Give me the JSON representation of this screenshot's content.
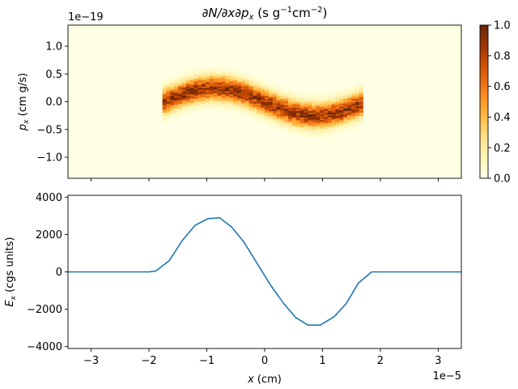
{
  "chart_data": [
    {
      "type": "heatmap",
      "title": "∂N/∂x∂p",
      "title_sub": "x",
      "title_units": " (s g",
      "title_sup1": "−1",
      "title_units2": "cm",
      "title_sup2": "−2",
      "title_units3": ")",
      "ylabel": "p",
      "ylabel_sub": "x",
      "ylabel_units": " (cm g/s)",
      "y_offset": "1e−19",
      "xlim": [
        -3.4e-05,
        3.4e-05
      ],
      "ylim": [
        -1.38e-19,
        1.38e-19
      ],
      "yticks": [
        -1.0,
        -0.5,
        0.0,
        0.5,
        1.0
      ],
      "ytick_labels": [
        "−1.0",
        "−0.5",
        "0.0",
        "0.5",
        "1.0"
      ],
      "colormap": "orange-brown",
      "colorbar": {
        "ticks": [
          0.0,
          0.2,
          0.4,
          0.6,
          0.8,
          1.0
        ],
        "tick_labels": [
          "0.0",
          "0.2",
          "0.4",
          "0.6",
          "0.8",
          "1.0"
        ]
      },
      "density_band": {
        "x_range": [
          -1.78e-05,
          1.72e-05
        ],
        "center_amplitude_scaled": 0.25,
        "center_period_x_scaled": 3.5,
        "spread_scaled": 0.15
      }
    },
    {
      "type": "line",
      "ylabel": "E",
      "ylabel_sub": "x",
      "ylabel_units": " (cgs units)",
      "xlabel": "x",
      "xlabel_units": " (cm)",
      "x_offset": "1e−5",
      "xlim": [
        -3.4,
        3.4
      ],
      "ylim": [
        4100,
        -4100
      ],
      "y_inverted": true,
      "xticks": [
        -3,
        -2,
        -1,
        0,
        1,
        2,
        3
      ],
      "xtick_labels": [
        "−3",
        "−2",
        "−1",
        "0",
        "1",
        "2",
        "3"
      ],
      "yticks": [
        -4000,
        -2000,
        0,
        2000,
        4000
      ],
      "ytick_labels": [
        "−4000",
        "−2000",
        "0",
        "2000",
        "4000"
      ],
      "series": [
        {
          "color": "#1f77b4",
          "x": [
            -3.4,
            -2.5,
            -2.0,
            -1.88,
            -1.65,
            -1.42,
            -1.2,
            -0.98,
            -0.78,
            -0.57,
            -0.36,
            -0.14,
            0.1,
            0.33,
            0.54,
            0.75,
            0.96,
            1.2,
            1.41,
            1.62,
            1.85,
            2.1,
            2.5,
            3.4
          ],
          "values": [
            0,
            0,
            0,
            50,
            600,
            1700,
            2500,
            2850,
            2900,
            2400,
            1600,
            500,
            -700,
            -1700,
            -2450,
            -2850,
            -2850,
            -2400,
            -1700,
            -600,
            0,
            0,
            0,
            0
          ]
        }
      ]
    }
  ]
}
